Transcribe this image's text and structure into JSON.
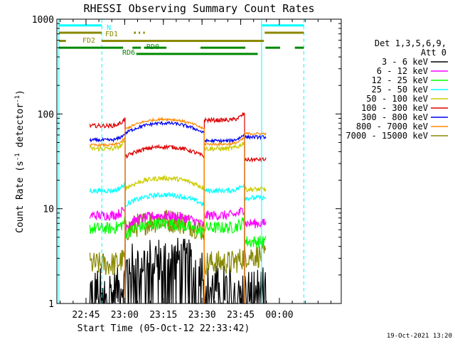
{
  "chart_data": {
    "type": "line",
    "title": "RHESSI Observing Summary Count Rates",
    "xlabel": "Start Time (05-Oct-12 22:33:42)",
    "ylabel": "Count Rate (s",
    "ylabel_sup1": "-1",
    "ylabel_mid": " detector",
    "ylabel_sup2": "-1",
    "ylabel_end": ")",
    "y_scale": "log",
    "ylim": [
      1,
      1000
    ],
    "xlim": [
      22.5617,
      24.4
    ],
    "x_ticks": [
      {
        "v": 22.75,
        "label": "22:45"
      },
      {
        "v": 23.0,
        "label": "23:00"
      },
      {
        "v": 23.25,
        "label": "23:15"
      },
      {
        "v": 23.5,
        "label": "23:30"
      },
      {
        "v": 23.75,
        "label": "23:45"
      },
      {
        "v": 24.0,
        "label": "00:00"
      }
    ],
    "y_ticks": [
      {
        "v": 1,
        "label": "1"
      },
      {
        "v": 10,
        "label": "10"
      },
      {
        "v": 100,
        "label": "100"
      },
      {
        "v": 1000,
        "label": "1000"
      }
    ],
    "legend_header": [
      "Det 1,3,5,6,9,",
      "Att 0"
    ],
    "legend_placement": "right",
    "series": [
      {
        "name": "3 - 6 keV",
        "color": "#000000"
      },
      {
        "name": "6 - 12 keV",
        "color": "#ff00ff"
      },
      {
        "name": "12 - 25 keV",
        "color": "#00ff00"
      },
      {
        "name": "25 - 50 keV",
        "color": "#00ffff"
      },
      {
        "name": "50 - 100 keV",
        "color": "#cccc00"
      },
      {
        "name": "100 - 300 keV",
        "color": "#dd0000"
      },
      {
        "name": "300 - 800 keV",
        "color": "#0000ee"
      },
      {
        "name": "800 - 7000 keV",
        "color": "#ff8800"
      },
      {
        "name": "7000 - 15000 keV",
        "color": "#888800"
      }
    ],
    "segments": [
      {
        "start": 22.775,
        "end": 23.003,
        "values": {
          "red": 75,
          "blue": 53,
          "orange": 47,
          "yellow": 43,
          "cyan": 15.5,
          "magenta": 8.5,
          "green": 6.2,
          "olive": 2.6,
          "black": 1.4
        }
      },
      {
        "start": 23.003,
        "end": 23.515,
        "values": {
          "red": 45,
          "blue": 80,
          "orange": 88,
          "yellow": 21,
          "cyan": 14,
          "magenta": 8.5,
          "green": 7.0,
          "olive": 7.5,
          "black": 3.0
        }
      },
      {
        "start": 23.515,
        "end": 23.775,
        "values": {
          "red": 86,
          "blue": 52,
          "orange": 48,
          "yellow": 43,
          "cyan": 15.5,
          "magenta": 8.5,
          "green": 6.3,
          "olive": 2.7,
          "black": 1.5
        }
      },
      {
        "start": 23.775,
        "end": 23.913,
        "values": {
          "red": 33,
          "blue": 57,
          "orange": 62,
          "yellow": 16,
          "cyan": 13,
          "magenta": 7.0,
          "green": 4.5,
          "olive": 3.2,
          "black": 1.4
        }
      }
    ],
    "vlines": [
      {
        "x": 22.575,
        "color": "#00ffff",
        "style": "solid"
      },
      {
        "x": 22.852,
        "color": "#00ffff",
        "style": "dashed"
      },
      {
        "x": 23.885,
        "color": "#00ffff",
        "style": "solid"
      },
      {
        "x": 24.158,
        "color": "#00ffff",
        "style": "dashed"
      }
    ],
    "bars": [
      {
        "label": "N",
        "color": "#00ffff",
        "y": 860,
        "segments": [
          [
            22.575,
            22.852
          ],
          [
            23.885,
            24.158
          ]
        ]
      },
      {
        "label": "FD1",
        "color": "#888800",
        "y": 720,
        "segments": [
          [
            22.575,
            22.852
          ],
          [
            23.06,
            23.072
          ],
          [
            23.09,
            23.1
          ],
          [
            23.12,
            23.13
          ],
          [
            23.905,
            24.158
          ]
        ]
      },
      {
        "label": "FD2",
        "color": "#888800",
        "y": 590,
        "segments": [
          [
            22.575,
            22.62
          ],
          [
            22.85,
            23.9
          ]
        ]
      },
      {
        "label": "RD0",
        "color": "#008800",
        "y": 500,
        "segments": [
          [
            22.575,
            22.99
          ],
          [
            23.05,
            23.105
          ],
          [
            23.125,
            23.27
          ],
          [
            23.49,
            23.78
          ],
          [
            23.91,
            24.005
          ],
          [
            24.1,
            24.158
          ]
        ]
      },
      {
        "label": "RD6",
        "color": "#008800",
        "y": 430,
        "segments": [
          [
            23.075,
            23.86
          ]
        ]
      }
    ],
    "annotation": "19-Oct-2021 13:20"
  }
}
